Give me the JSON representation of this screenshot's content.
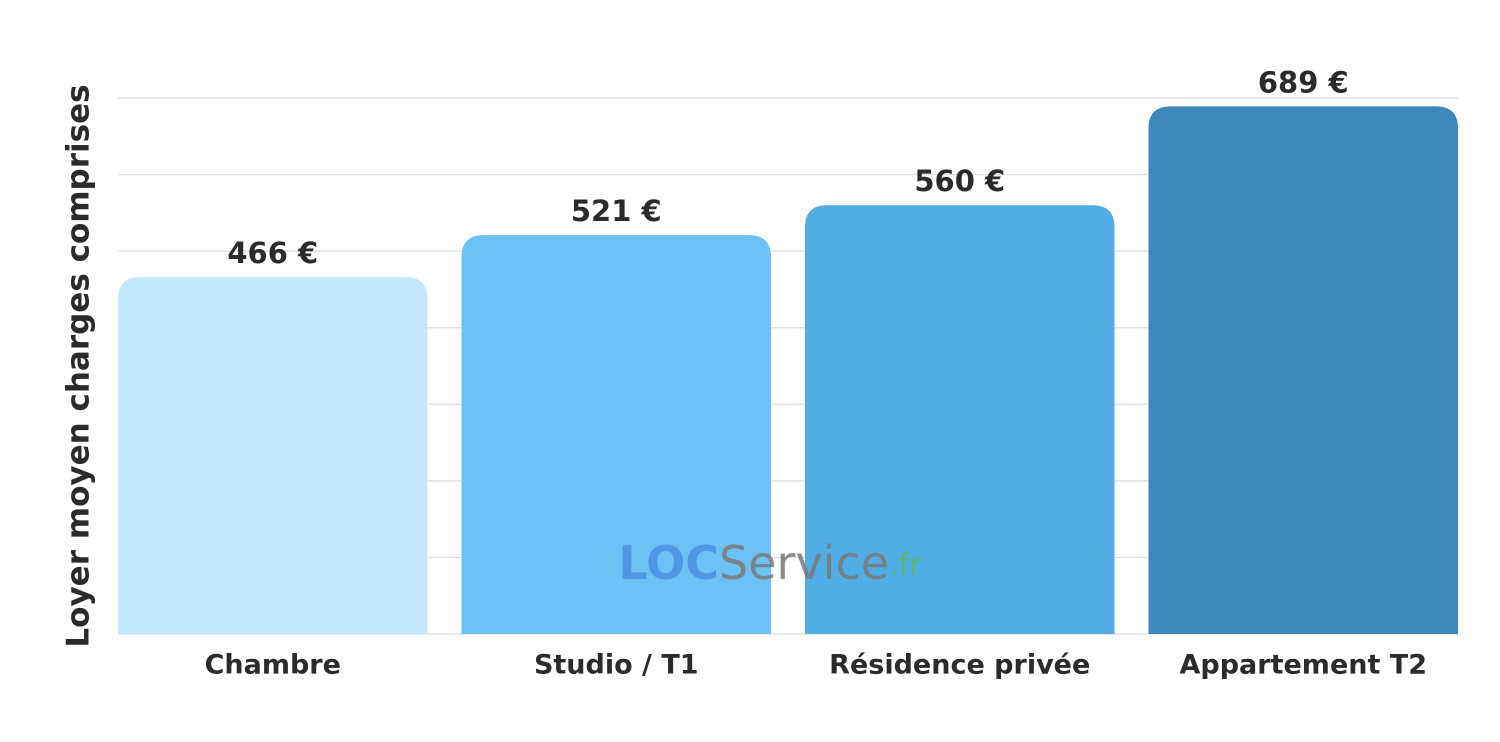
{
  "chart_data": {
    "type": "bar",
    "y_label": "Loyer moyen charges comprises",
    "categories": [
      "Chambre",
      "Studio / T1",
      "Résidence privée",
      "Appartement T2"
    ],
    "values": [
      466,
      521,
      560,
      689
    ],
    "value_labels": [
      "466 €",
      "521 €",
      "560 €",
      "689 €"
    ],
    "colors": [
      "#c3e8fa",
      "#6cc1f5",
      "#51aee4",
      "#3d88bb"
    ],
    "ylim": [
      0,
      700
    ],
    "yticks": [
      0,
      100,
      200,
      300,
      400,
      500,
      600,
      700
    ],
    "grid": true,
    "watermark": {
      "parts": [
        "LOC",
        "Service",
        ".fr"
      ],
      "colors": [
        "#4a90e2",
        "#7a7a7a",
        "#5cb85c"
      ]
    }
  }
}
